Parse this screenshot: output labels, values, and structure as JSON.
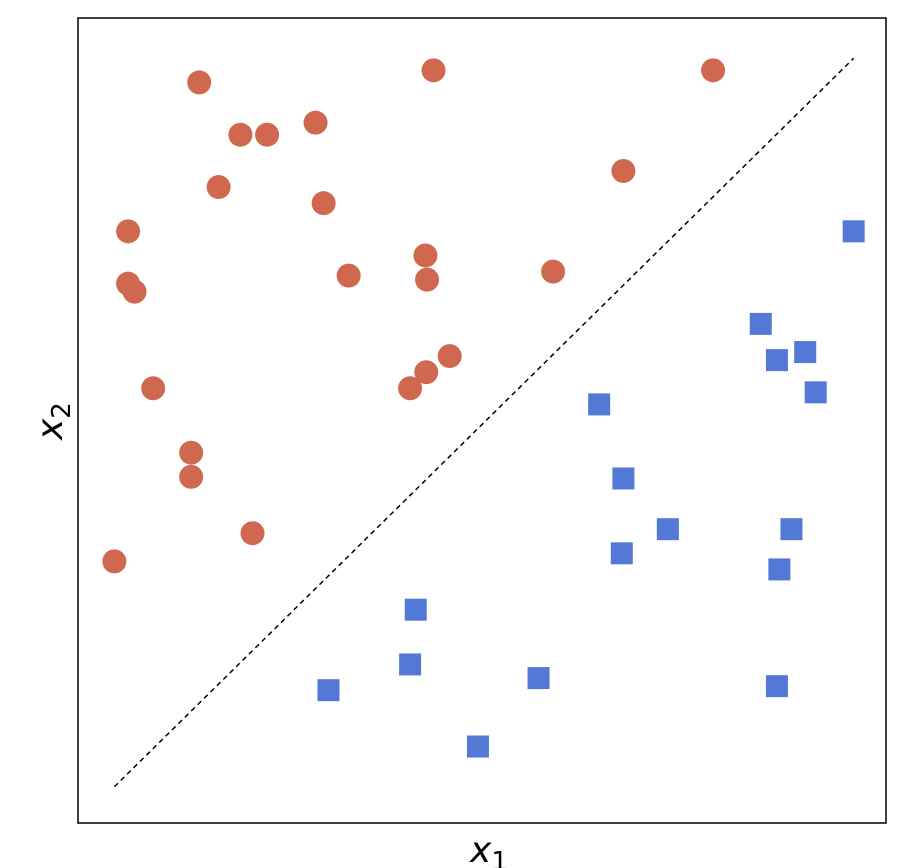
{
  "chart_data": {
    "type": "scatter",
    "xlabel": "x",
    "xlabel_sub": "1",
    "ylabel": "x",
    "ylabel_sub": "2",
    "xlim": [
      0,
      10
    ],
    "ylim": [
      0,
      10
    ],
    "grid": false,
    "legend": "none",
    "series": [
      {
        "marker": "circle",
        "color": "#D0674F",
        "points": [
          [
            0.45,
            3.25
          ],
          [
            0.62,
            7.35
          ],
          [
            0.62,
            6.7
          ],
          [
            0.7,
            6.6
          ],
          [
            0.93,
            5.4
          ],
          [
            1.4,
            4.6
          ],
          [
            1.4,
            4.3
          ],
          [
            1.5,
            9.2
          ],
          [
            1.74,
            7.9
          ],
          [
            2.01,
            8.55
          ],
          [
            2.16,
            3.6
          ],
          [
            2.34,
            8.55
          ],
          [
            2.94,
            8.7
          ],
          [
            3.04,
            7.7
          ],
          [
            3.35,
            6.8
          ],
          [
            4.11,
            5.4
          ],
          [
            4.31,
            5.6
          ],
          [
            4.3,
            7.05
          ],
          [
            4.32,
            6.75
          ],
          [
            4.4,
            9.35
          ],
          [
            4.6,
            5.8
          ],
          [
            5.88,
            6.85
          ],
          [
            6.75,
            8.1
          ],
          [
            7.86,
            9.35
          ]
        ]
      },
      {
        "marker": "square",
        "color": "#5478D6",
        "points": [
          [
            3.1,
            1.65
          ],
          [
            4.11,
            1.97
          ],
          [
            4.18,
            2.65
          ],
          [
            4.95,
            0.95
          ],
          [
            5.7,
            1.8
          ],
          [
            6.45,
            5.2
          ],
          [
            6.73,
            3.35
          ],
          [
            6.75,
            4.28
          ],
          [
            7.3,
            3.65
          ],
          [
            8.45,
            6.2
          ],
          [
            8.65,
            1.7
          ],
          [
            8.65,
            5.75
          ],
          [
            8.68,
            3.15
          ],
          [
            8.83,
            3.65
          ],
          [
            9.0,
            5.85
          ],
          [
            9.13,
            5.35
          ],
          [
            9.6,
            7.35
          ]
        ]
      }
    ],
    "decision_boundary": {
      "style": "dashed",
      "color": "#000000",
      "points": [
        [
          0.45,
          0.45
        ],
        [
          9.6,
          9.5
        ]
      ]
    }
  }
}
